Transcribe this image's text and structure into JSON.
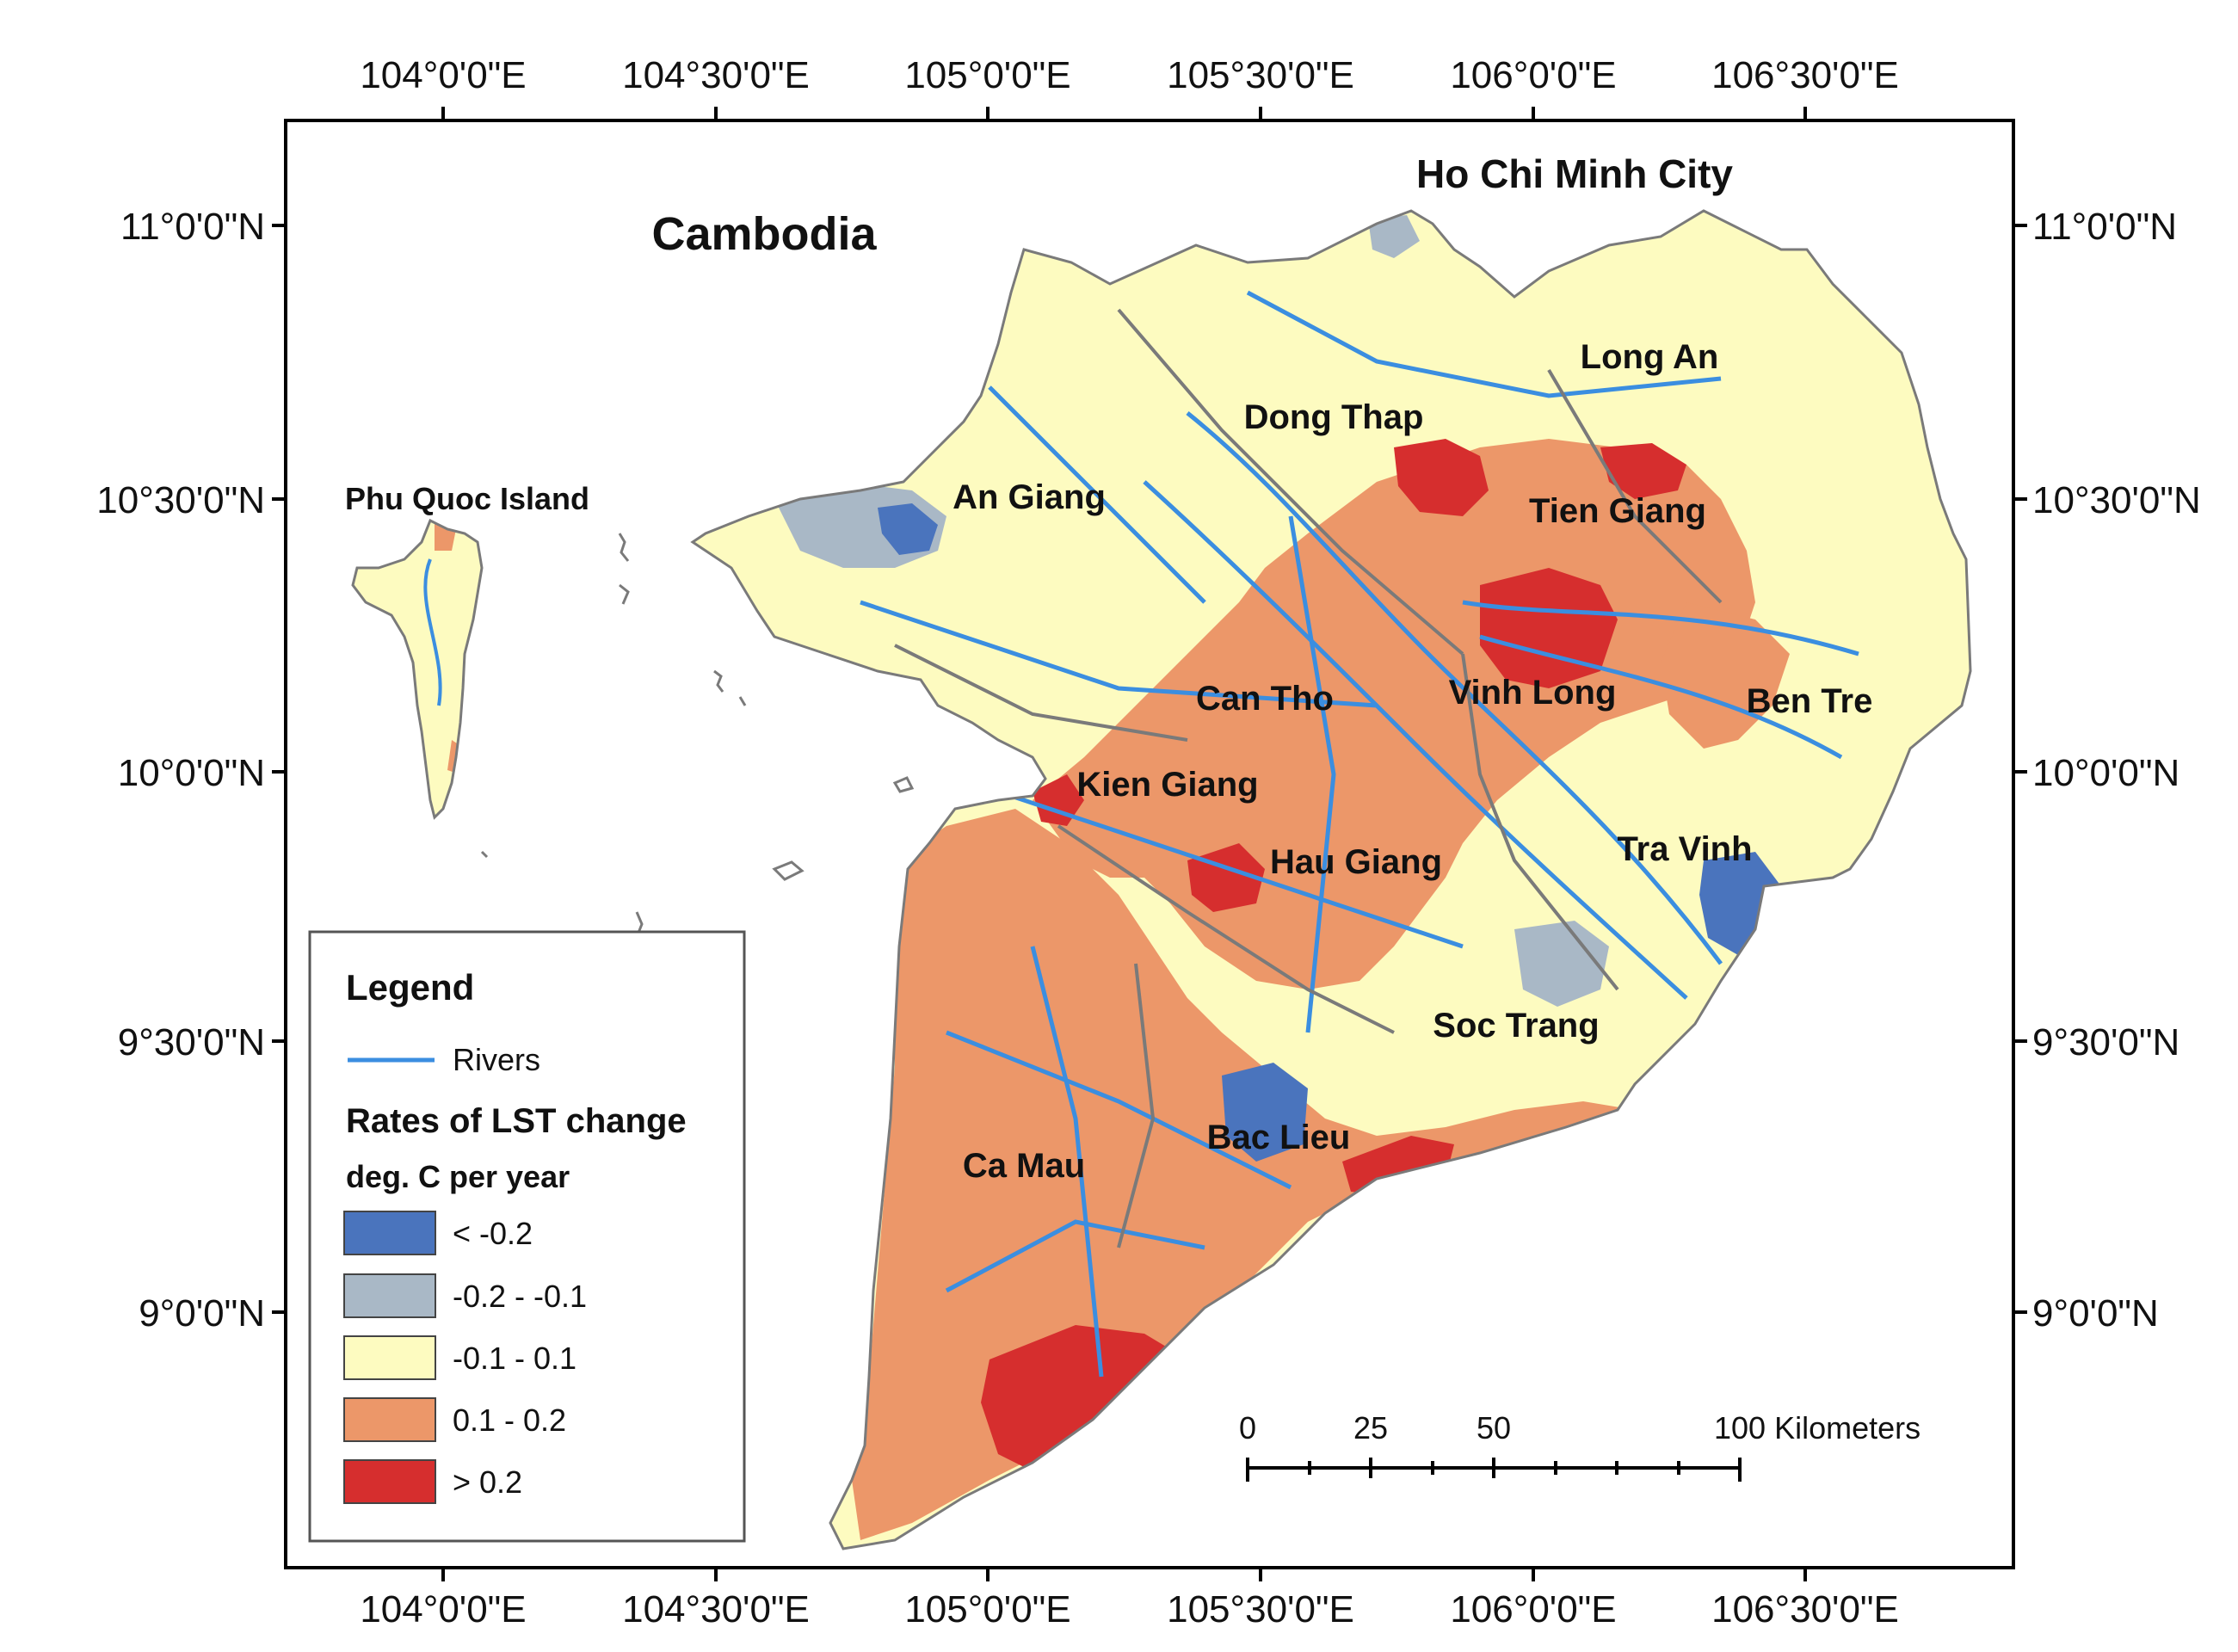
{
  "map": {
    "axes": {
      "top_ticks": [
        "104°0'0\"E",
        "104°30'0\"E",
        "105°0'0\"E",
        "105°30'0\"E",
        "106°0'0\"E",
        "106°30'0\"E"
      ],
      "bottom_ticks": [
        "104°0'0\"E",
        "104°30'0\"E",
        "105°0'0\"E",
        "105°30'0\"E",
        "106°0'0\"E",
        "106°30'0\"E"
      ],
      "left_ticks": [
        "11°0'0\"N",
        "10°30'0\"N",
        "10°0'0\"N",
        "9°30'0\"N",
        "9°0'0\"N"
      ],
      "right_ticks": [
        "11°0'0\"N",
        "10°30'0\"N",
        "10°0'0\"N",
        "9°30'0\"N",
        "9°0'0\"N"
      ]
    },
    "labels": {
      "cambodia": "Cambodia",
      "hcmc": "Ho Chi Minh City",
      "phu_quoc": "Phu Quoc Island",
      "an_giang": "An Giang",
      "dong_thap": "Dong Thap",
      "long_an": "Long An",
      "tien_giang": "Tien Giang",
      "can_tho": "Can Tho",
      "vinh_long": "Vinh Long",
      "ben_tre": "Ben Tre",
      "kien_giang": "Kien Giang",
      "hau_giang": "Hau Giang",
      "tra_vinh": "Tra Vinh",
      "soc_trang": "Soc Trang",
      "bac_lieu": "Bac Lieu",
      "ca_mau": "Ca Mau"
    },
    "legend": {
      "title": "Legend",
      "rivers_label": "Rivers",
      "rate_title": "Rates of LST change",
      "unit": "deg. C per year",
      "classes": [
        {
          "label": "< -0.2",
          "color": "#4a74bd"
        },
        {
          "label": "-0.2 - -0.1",
          "color": "#a9b8c6"
        },
        {
          "label": "-0.1 - 0.1",
          "color": "#fdfbc0"
        },
        {
          "label": "0.1 - 0.2",
          "color": "#ec9769"
        },
        {
          "label": "> 0.2",
          "color": "#d62e2e"
        }
      ]
    },
    "scale_bar": {
      "labels": [
        "0",
        "25",
        "50",
        "100 Kilometers"
      ]
    },
    "colors": {
      "river": "#3b8ee0",
      "boundary": "#7a7a7a",
      "frame": "#000000"
    }
  }
}
